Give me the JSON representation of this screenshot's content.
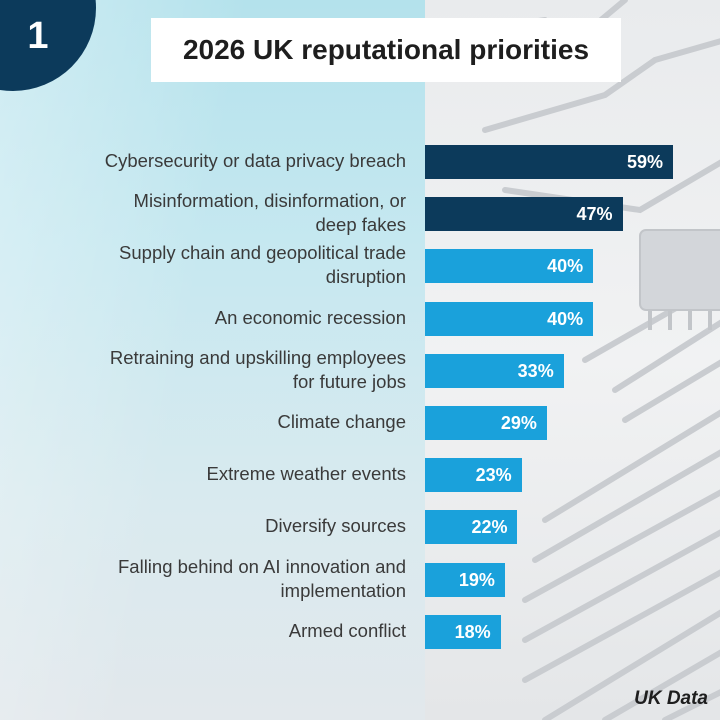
{
  "badge": {
    "number": "1"
  },
  "title": "2026 UK reputational priorities",
  "footer": "UK Data",
  "colors": {
    "highlight": "#0c3a5b",
    "standard": "#1aa1db"
  },
  "chart_data": {
    "type": "bar",
    "orientation": "horizontal",
    "title": "2026 UK reputational priorities",
    "categories": [
      [
        "Cybersecurity or data privacy breach"
      ],
      [
        "Misinformation, disinformation, or",
        "deep fakes"
      ],
      [
        "Supply chain and geopolitical trade",
        "disruption"
      ],
      [
        "An economic recession"
      ],
      [
        "Retraining and upskilling employees",
        "for future jobs"
      ],
      [
        "Climate change"
      ],
      [
        "Extreme weather events"
      ],
      [
        "Diversify sources"
      ],
      [
        "Falling behind on AI innovation and",
        "implementation"
      ],
      [
        "Armed conflict"
      ]
    ],
    "values": [
      59,
      47,
      40,
      40,
      33,
      29,
      23,
      22,
      19,
      18
    ],
    "value_labels": [
      "59%",
      "47%",
      "40%",
      "40%",
      "33%",
      "29%",
      "23%",
      "22%",
      "19%",
      "18%"
    ],
    "highlight": [
      true,
      true,
      false,
      false,
      false,
      false,
      false,
      false,
      false,
      false
    ],
    "xlim": [
      0,
      70
    ]
  }
}
